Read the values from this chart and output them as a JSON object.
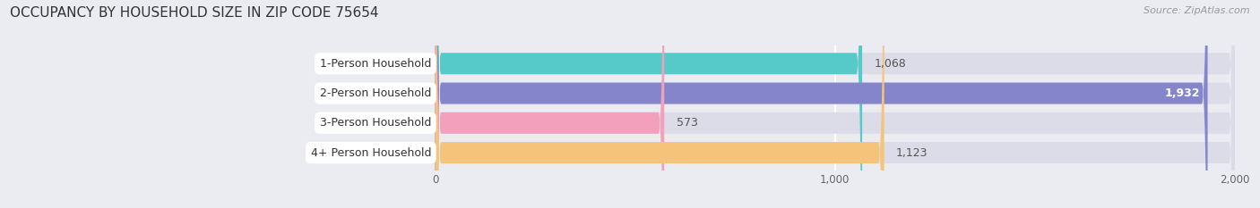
{
  "title": "OCCUPANCY BY HOUSEHOLD SIZE IN ZIP CODE 75654",
  "source": "Source: ZipAtlas.com",
  "categories": [
    "1-Person Household",
    "2-Person Household",
    "3-Person Household",
    "4+ Person Household"
  ],
  "values": [
    1068,
    1932,
    573,
    1123
  ],
  "bar_colors": [
    "#56c9c9",
    "#8585cc",
    "#f2a0bb",
    "#f5c47a"
  ],
  "xlim_left": -600,
  "xlim_right": 2000,
  "xticks": [
    0,
    1000,
    2000
  ],
  "xtick_labels": [
    "0",
    "1,000",
    "2,000"
  ],
  "background_color": "#ebebf2",
  "bar_background_color": "#dcdce8",
  "bar_height": 0.72,
  "figsize": [
    14.06,
    2.33
  ],
  "dpi": 100,
  "value_label_inside_color": "#ffffff",
  "value_label_outside_color": "#555555",
  "title_fontsize": 11,
  "source_fontsize": 8,
  "bar_label_fontsize": 9,
  "value_fontsize": 9
}
